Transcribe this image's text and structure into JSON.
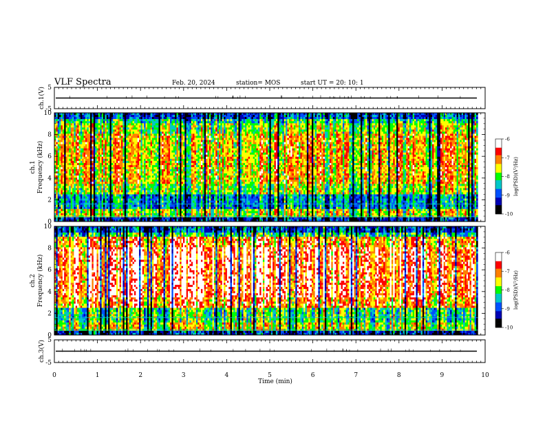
{
  "header": {
    "title": "VLF Spectra",
    "date": "Feb. 20, 2024",
    "station": "station= MOS",
    "start": "start UT =   20: 10: 1"
  },
  "chart_data": [
    {
      "type": "line",
      "name": "ch1-waveform",
      "ylabel": "ch.1(V)",
      "ylim": [
        -5,
        5
      ],
      "yticks": [
        "5",
        "-5"
      ],
      "xlim": [
        0,
        10
      ],
      "level": 0
    },
    {
      "type": "heatmap",
      "name": "ch1-spectrogram",
      "ylabel": "ch.1\nFrequency (kHz)",
      "ylim": [
        0,
        10
      ],
      "yticks": [
        "0",
        "2",
        "4",
        "6",
        "8",
        "10"
      ],
      "xlim": [
        0,
        9.83
      ],
      "intensity": "medium",
      "colorbar": {
        "label": "log(PSD)(V²/Hz)",
        "range": [
          -10,
          -6
        ],
        "ticks": [
          "-6",
          "-7",
          "-8",
          "-9",
          "-10"
        ]
      }
    },
    {
      "type": "heatmap",
      "name": "ch2-spectrogram",
      "ylabel": "ch.2\nFrequency (kHz)",
      "ylim": [
        0,
        10
      ],
      "yticks": [
        "0",
        "2",
        "4",
        "6",
        "8",
        "10"
      ],
      "xlim": [
        0,
        9.83
      ],
      "intensity": "high",
      "colorbar": {
        "label": "log(PSD)(V²/Hz)",
        "range": [
          -10,
          -6
        ],
        "ticks": [
          "-6",
          "-7",
          "-8",
          "-9",
          "-10"
        ]
      }
    },
    {
      "type": "line",
      "name": "ch3-waveform",
      "ylabel": "ch.3(V)",
      "ylim": [
        -5,
        5
      ],
      "yticks": [
        "5",
        "-5"
      ],
      "xlim": [
        0,
        10
      ],
      "level": 0
    }
  ],
  "xaxis": {
    "label": "Time (min)",
    "ticks": [
      "0",
      "1",
      "2",
      "3",
      "4",
      "5",
      "6",
      "7",
      "8",
      "9",
      "10"
    ],
    "range": [
      0,
      10
    ]
  },
  "colormap": [
    "#000000",
    "#0000b4",
    "#0050ff",
    "#00c8c8",
    "#00ff00",
    "#ffff00",
    "#ff8000",
    "#ff0000",
    "#ffffff"
  ]
}
